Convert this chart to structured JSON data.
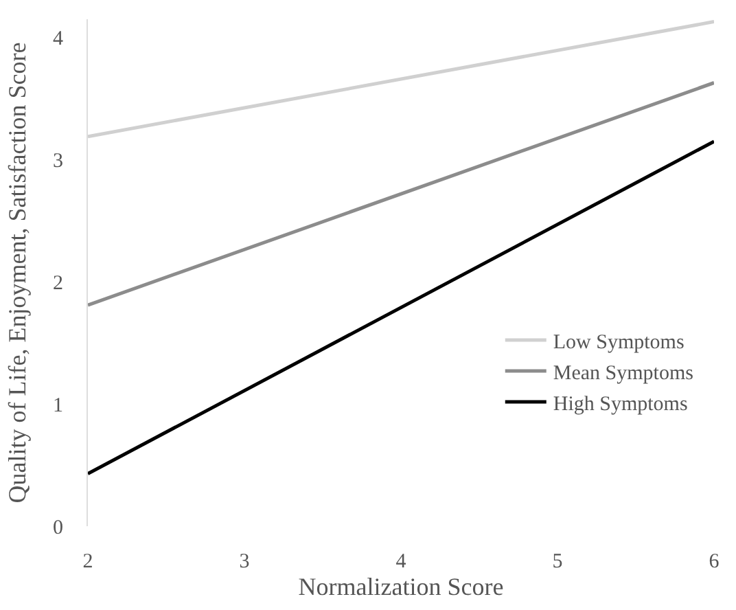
{
  "chart_data": {
    "type": "line",
    "xlabel": "Normalization Score",
    "ylabel": "Quality of Life, Enjoyment, Satisfaction Score",
    "x": [
      2,
      6
    ],
    "series": [
      {
        "name": "Low Symptoms",
        "color": "#d0d0d0",
        "values": [
          3.19,
          4.13
        ]
      },
      {
        "name": "Mean Symptoms",
        "color": "#8c8c8c",
        "values": [
          1.81,
          3.63
        ]
      },
      {
        "name": "High Symptoms",
        "color": "#000000",
        "values": [
          0.43,
          3.15
        ]
      }
    ],
    "xlim": [
      2,
      6
    ],
    "xticks": [
      2,
      3,
      4,
      5,
      6
    ],
    "ylim": [
      0,
      4.15
    ],
    "yticks": [
      0,
      1,
      2,
      3,
      4
    ],
    "legend": "bottom right",
    "marker": "none",
    "line_style": "solid"
  }
}
